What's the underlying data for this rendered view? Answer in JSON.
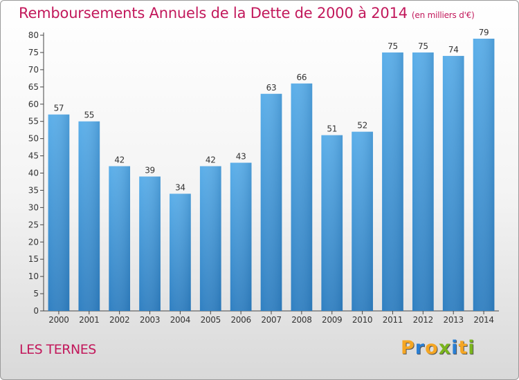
{
  "chart_data": {
    "type": "bar",
    "title": "Remboursements Annuels de la Dette de 2000 à 2014",
    "subtitle": "(en milliers d'€)",
    "categories": [
      "2000",
      "2001",
      "2002",
      "2003",
      "2004",
      "2005",
      "2006",
      "2007",
      "2008",
      "2009",
      "2010",
      "2011",
      "2012",
      "2013",
      "2014"
    ],
    "values": [
      57,
      55,
      42,
      39,
      34,
      42,
      43,
      63,
      66,
      51,
      52,
      75,
      75,
      74,
      79
    ],
    "yticks": [
      0,
      5,
      10,
      15,
      20,
      25,
      30,
      35,
      40,
      45,
      50,
      55,
      60,
      65,
      70,
      75,
      80
    ],
    "ylim": [
      0,
      80
    ],
    "grid": false,
    "xlabel": "",
    "ylabel": "",
    "bar_color": "#3b8fd4"
  },
  "footer": {
    "commune": "LES TERNES",
    "logo_letters": [
      "P",
      "r",
      "o",
      "x",
      "i",
      "t",
      "i"
    ],
    "logo_colors": [
      "#f5a623",
      "#2a7fd4",
      "#f5a623",
      "#7ab51d",
      "#2a7fd4",
      "#f5a623",
      "#7ab51d"
    ]
  }
}
